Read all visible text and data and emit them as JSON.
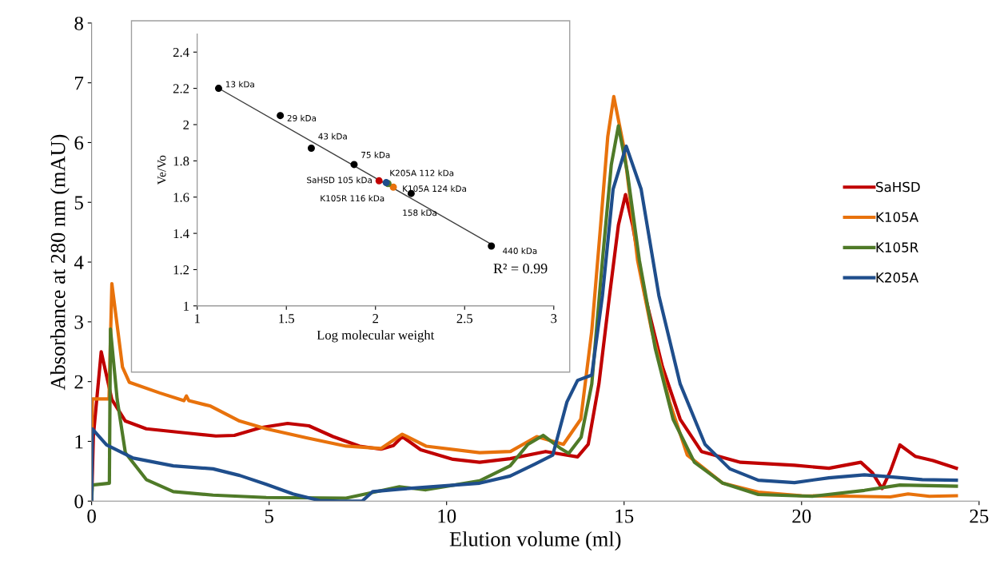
{
  "chart_data": [
    {
      "type": "line",
      "xlabel": "Elution volume (ml)",
      "ylabel": "Absorbance at 280 nm (mAU)",
      "xlim": [
        0,
        25
      ],
      "xticks": [
        0,
        5,
        10,
        15,
        20,
        25
      ],
      "ylim": [
        0,
        8
      ],
      "yticks": [
        0,
        1,
        2,
        3,
        4,
        5,
        6,
        7,
        8
      ],
      "grid": false,
      "legend": "right",
      "line_style": "solid",
      "series": [
        {
          "name": "SaHSD",
          "color": "#c00000",
          "x": [
            0.0,
            0.05,
            0.27,
            0.57,
            0.95,
            1.54,
            2.67,
            3.5,
            4.02,
            4.77,
            5.52,
            6.12,
            6.8,
            7.55,
            8.15,
            8.5,
            8.75,
            9.27,
            10.18,
            10.93,
            11.79,
            12.79,
            13.69,
            13.99,
            14.29,
            14.59,
            14.84,
            15.04,
            15.24,
            15.59,
            16.08,
            16.58,
            17.18,
            18.28,
            19.8,
            20.77,
            21.67,
            22.0,
            22.27,
            22.5,
            22.77,
            23.2,
            23.7,
            24.36
          ],
          "values": [
            0.0,
            1.1,
            2.5,
            1.7,
            1.34,
            1.21,
            1.14,
            1.09,
            1.1,
            1.23,
            1.3,
            1.26,
            1.08,
            0.92,
            0.87,
            0.93,
            1.08,
            0.86,
            0.7,
            0.65,
            0.71,
            0.83,
            0.74,
            0.95,
            1.96,
            3.44,
            4.62,
            5.13,
            4.62,
            3.44,
            2.25,
            1.37,
            0.83,
            0.65,
            0.6,
            0.55,
            0.65,
            0.47,
            0.21,
            0.5,
            0.94,
            0.75,
            0.68,
            0.55
          ]
        },
        {
          "name": "K105A",
          "color": "#e8720c",
          "x": [
            0.0,
            0.02,
            0.49,
            0.57,
            0.87,
            1.06,
            1.92,
            2.6,
            2.67,
            2.74,
            3.35,
            4.17,
            4.92,
            6.05,
            7.17,
            8.15,
            8.75,
            9.42,
            10.93,
            11.8,
            12.54,
            13.29,
            13.78,
            14.09,
            14.34,
            14.54,
            14.71,
            15.0,
            15.38,
            15.78,
            16.28,
            16.78,
            17.78,
            18.78,
            20.0,
            21.5,
            22.5,
            23.0,
            23.6,
            24.36
          ],
          "values": [
            0.7,
            1.71,
            1.71,
            3.64,
            2.24,
            1.99,
            1.81,
            1.68,
            1.76,
            1.68,
            1.59,
            1.34,
            1.21,
            1.06,
            0.92,
            0.88,
            1.12,
            0.92,
            0.81,
            0.83,
            1.08,
            0.95,
            1.37,
            2.85,
            4.62,
            6.1,
            6.77,
            5.9,
            4.03,
            2.85,
            1.66,
            0.77,
            0.3,
            0.15,
            0.09,
            0.08,
            0.07,
            0.12,
            0.08,
            0.09
          ]
        },
        {
          "name": "K105R",
          "color": "#4f7a28",
          "x": [
            0.0,
            0.02,
            0.5,
            0.53,
            0.72,
            0.95,
            1.54,
            2.3,
            3.42,
            4.92,
            7.17,
            8.67,
            9.42,
            10.93,
            11.79,
            12.29,
            12.72,
            13.19,
            13.44,
            13.79,
            14.09,
            14.39,
            14.64,
            14.84,
            15.09,
            15.43,
            15.88,
            16.38,
            16.98,
            17.78,
            18.78,
            20.3,
            21.77,
            22.77,
            24.36
          ],
          "values": [
            0.0,
            0.27,
            0.3,
            2.88,
            1.7,
            0.81,
            0.36,
            0.16,
            0.1,
            0.06,
            0.05,
            0.24,
            0.19,
            0.34,
            0.59,
            0.95,
            1.1,
            0.89,
            0.8,
            1.07,
            1.96,
            4.03,
            5.63,
            6.28,
            5.51,
            4.03,
            2.55,
            1.37,
            0.65,
            0.3,
            0.11,
            0.08,
            0.18,
            0.27,
            0.25
          ]
        },
        {
          "name": "K205A",
          "color": "#1f4e8c",
          "x": [
            0.0,
            0.02,
            0.42,
            1.17,
            2.3,
            3.42,
            4.17,
            4.92,
            5.67,
            6.42,
            7.0,
            7.62,
            7.92,
            8.67,
            10.93,
            11.79,
            12.49,
            12.99,
            13.39,
            13.69,
            14.09,
            14.39,
            14.69,
            15.06,
            15.48,
            15.98,
            16.58,
            17.28,
            17.98,
            18.78,
            19.8,
            20.77,
            21.77,
            22.44,
            23.4,
            24.36
          ],
          "values": [
            0.0,
            1.21,
            0.94,
            0.72,
            0.59,
            0.54,
            0.43,
            0.28,
            0.12,
            0.01,
            0.0,
            0.0,
            0.16,
            0.2,
            0.3,
            0.42,
            0.62,
            0.77,
            1.66,
            2.02,
            2.11,
            3.44,
            5.22,
            5.94,
            5.22,
            3.44,
            1.96,
            0.95,
            0.54,
            0.35,
            0.31,
            0.39,
            0.44,
            0.41,
            0.36,
            0.35
          ]
        }
      ]
    },
    {
      "type": "scatter",
      "xlabel": "Log molecular weight",
      "ylabel": "Ve/Vo",
      "xlim": [
        1,
        3
      ],
      "xticks": [
        1,
        1.5,
        2,
        2.5,
        3
      ],
      "ylim": [
        1,
        2.5
      ],
      "yticks": [
        1,
        1.2,
        1.4,
        1.6,
        1.8,
        2,
        2.2,
        2.4
      ],
      "grid": false,
      "legend": false,
      "marker": "circle",
      "series": [
        {
          "type": "line",
          "marker": "none",
          "color": "#404040",
          "x": [
            1.12,
            2.65
          ],
          "values": [
            2.2,
            1.34
          ]
        },
        {
          "color": "#000000",
          "x": [
            1.12,
            1.466,
            1.64,
            1.88,
            2.2,
            2.65
          ],
          "values": [
            2.2,
            2.05,
            1.87,
            1.78,
            1.62,
            1.33
          ]
        },
        {
          "color": "#c00000",
          "x": [
            2.02
          ],
          "values": [
            1.69
          ]
        },
        {
          "color": "#1f4e8c",
          "x": [
            2.06
          ],
          "values": [
            1.68
          ]
        },
        {
          "color": "#4f7a28",
          "x": [
            2.07
          ],
          "values": [
            1.675
          ]
        },
        {
          "color": "#e8720c",
          "x": [
            2.1
          ],
          "values": [
            1.655
          ]
        }
      ],
      "annotations": [
        {
          "text": "13 kDa",
          "x": 1.12,
          "y": 2.2
        },
        {
          "text": "29 kDa",
          "x": 1.466,
          "y": 2.05
        },
        {
          "text": "43 kDa",
          "x": 1.64,
          "y": 1.87
        },
        {
          "text": "75 kDa",
          "x": 1.88,
          "y": 1.78
        },
        {
          "text": "158 kDa",
          "x": 2.2,
          "y": 1.62
        },
        {
          "text": "440 kDa",
          "x": 2.65,
          "y": 1.33
        },
        {
          "text": "SaHSD 105 kDa",
          "x": 2.02,
          "y": 1.69
        },
        {
          "text": "K205A 112 kDa",
          "x": 2.06,
          "y": 1.68
        },
        {
          "text": "K105R 116 kDa",
          "x": 2.07,
          "y": 1.675
        },
        {
          "text": "K105A 124 kDa",
          "x": 2.1,
          "y": 1.655
        },
        "R² = 0.99"
      ]
    }
  ]
}
